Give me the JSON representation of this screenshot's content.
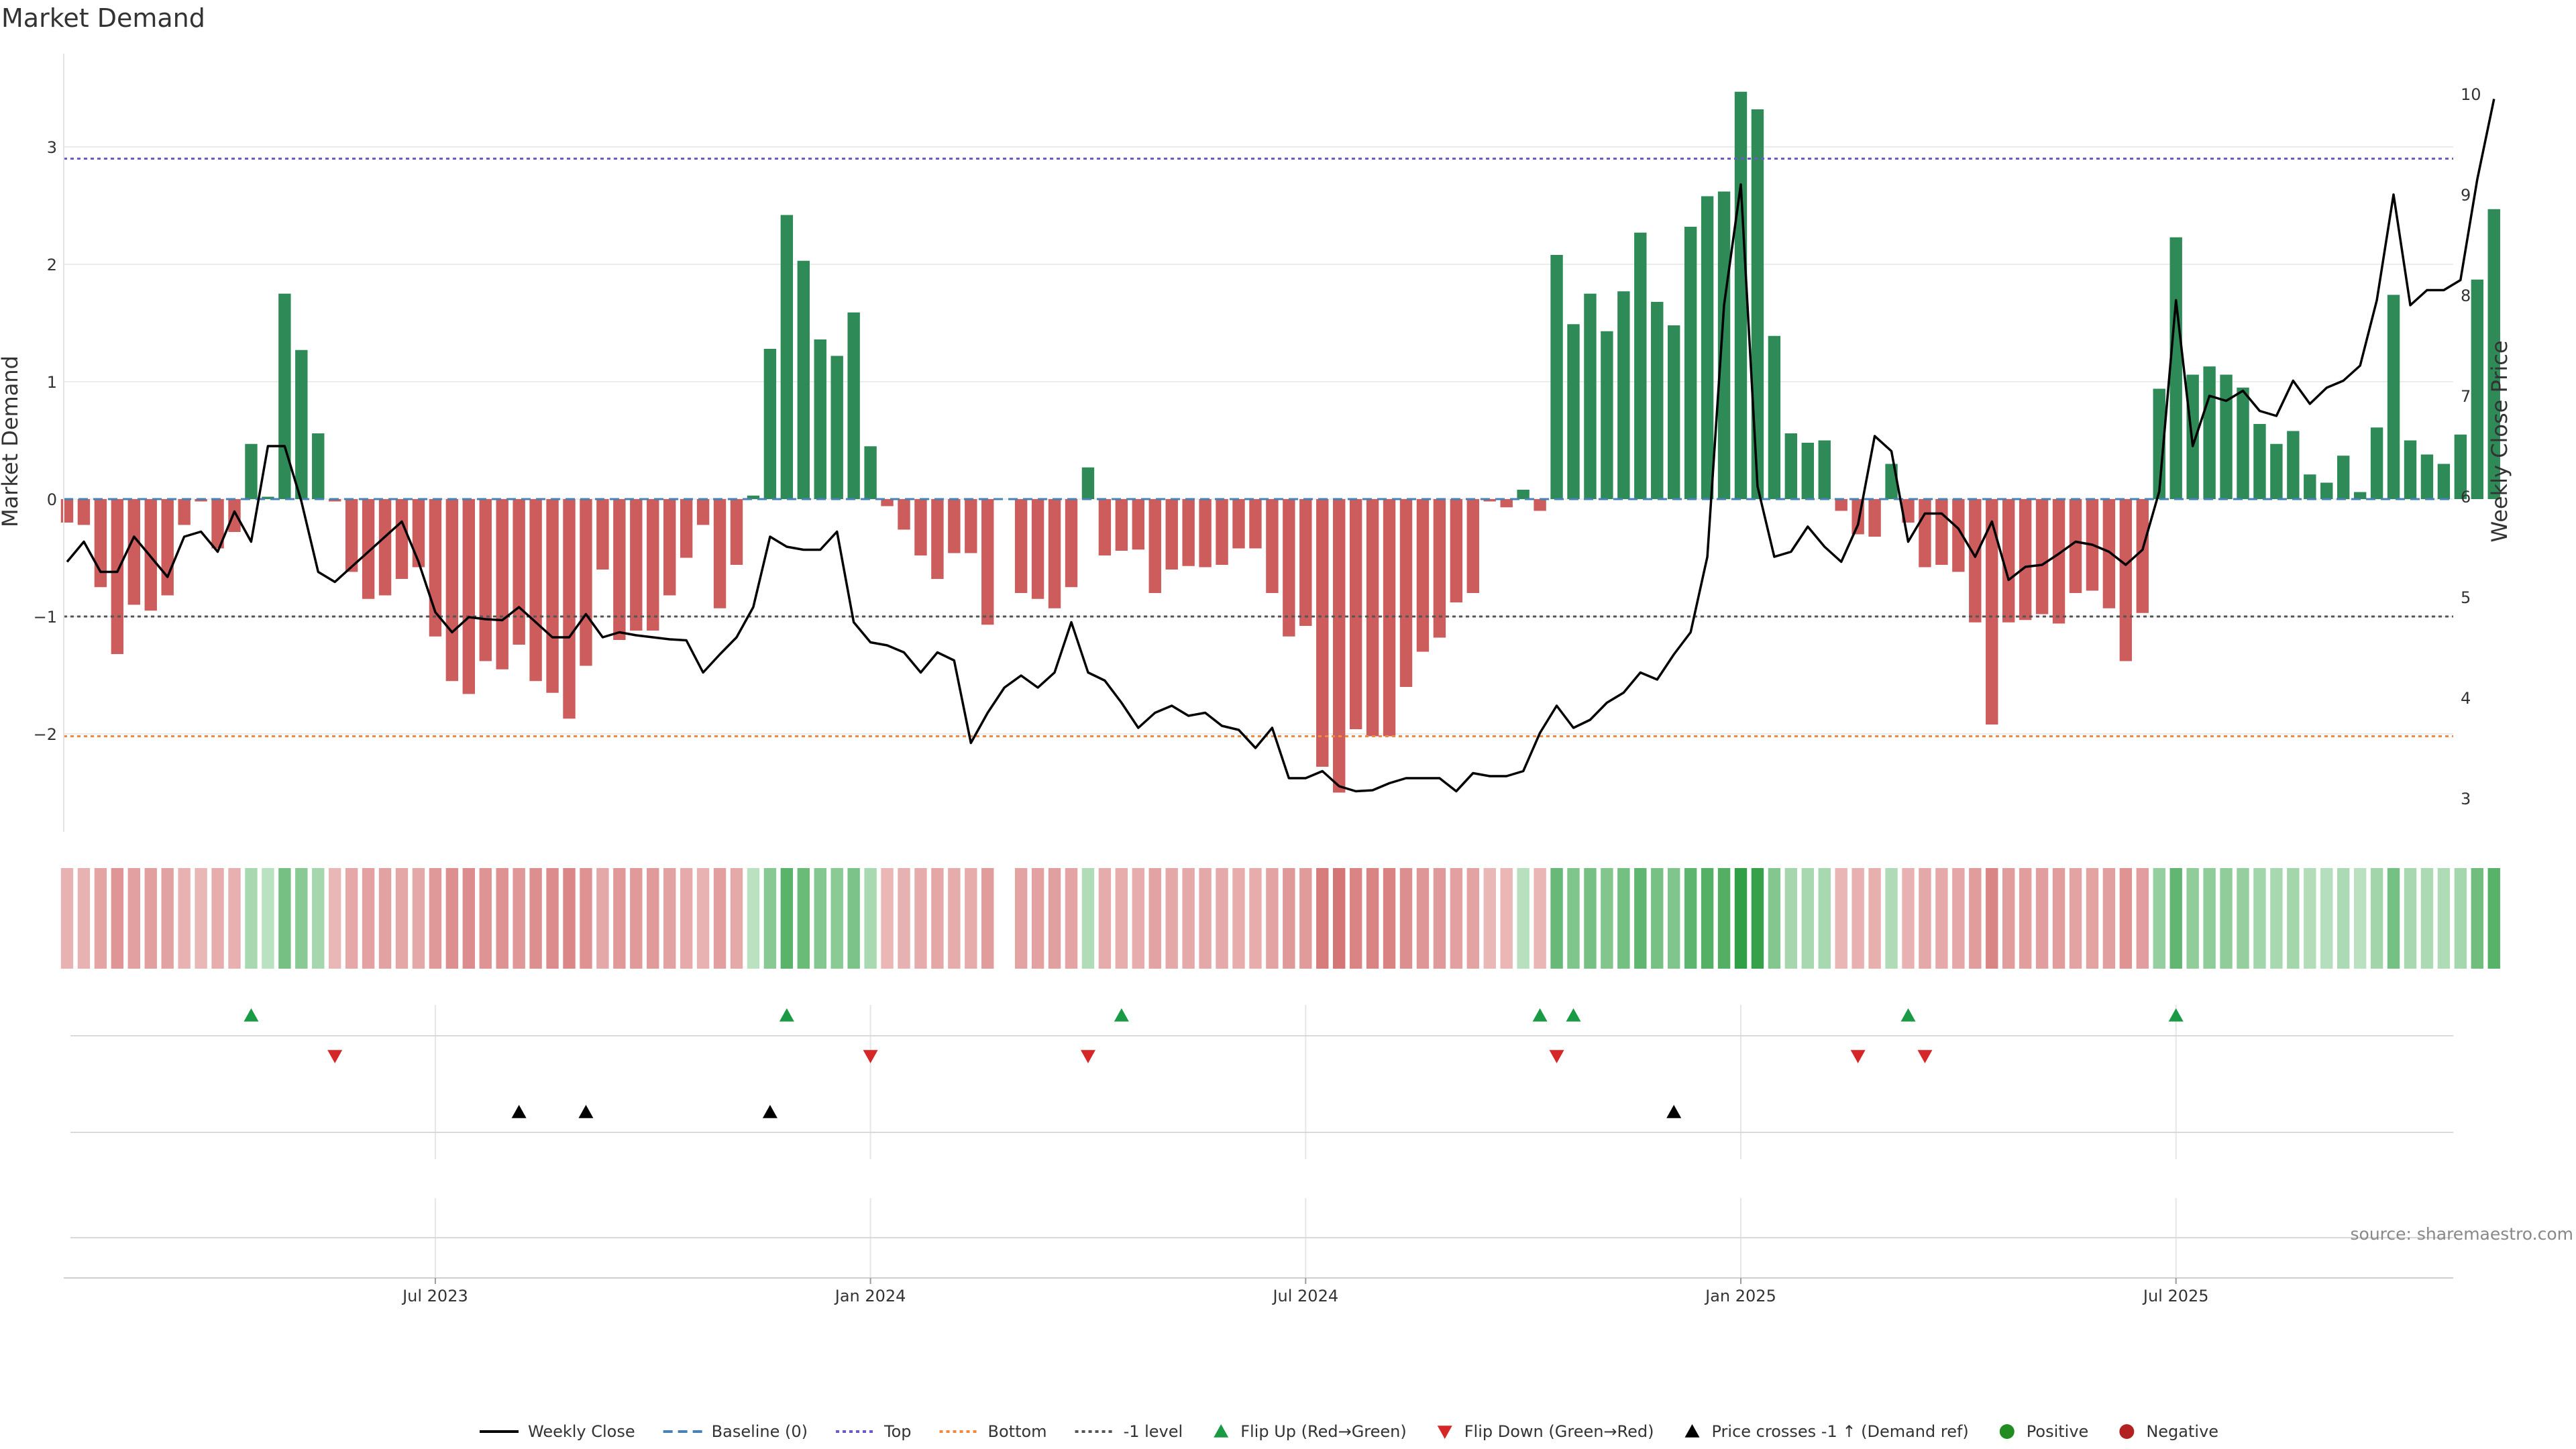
{
  "chart_data": {
    "type": "bar+line",
    "title": "Market Demand",
    "ylabel": "Market Demand",
    "y2label": "Weekly Close Price",
    "ylim": [
      -2.8,
      3.8
    ],
    "y2lim": [
      2.7,
      10.3
    ],
    "yticks": [
      -2,
      -1,
      0,
      1,
      2,
      3
    ],
    "yticks_labels": [
      "−2",
      "−1",
      "0",
      "1",
      "2",
      "3"
    ],
    "y2ticks": [
      3,
      4,
      5,
      6,
      7,
      8,
      9,
      10
    ],
    "xticks": [
      {
        "index": 22,
        "label": "Jul 2023"
      },
      {
        "index": 48,
        "label": "Jan 2024"
      },
      {
        "index": 74,
        "label": "Jul 2024"
      },
      {
        "index": 100,
        "label": "Jan 2025"
      },
      {
        "index": 126,
        "label": "Jul 2025"
      }
    ],
    "hlines": [
      {
        "name": "Top",
        "value": 2.9,
        "color": "#6a5acd",
        "style": "dotted"
      },
      {
        "name": "-1 level",
        "value": -1.0,
        "color": "#555555",
        "style": "dotted"
      },
      {
        "name": "Bottom",
        "value": -2.02,
        "color": "#f08a40",
        "style": "dotted"
      }
    ],
    "demand": [
      -0.2,
      -0.22,
      -0.75,
      -1.32,
      -0.9,
      -0.95,
      -0.82,
      -0.22,
      -0.02,
      -0.42,
      -0.28,
      0.47,
      0.02,
      1.75,
      1.27,
      0.56,
      -0.02,
      -0.62,
      -0.85,
      -0.82,
      -0.68,
      -0.58,
      -1.17,
      -1.55,
      -1.66,
      -1.38,
      -1.45,
      -1.24,
      -1.55,
      -1.65,
      -1.87,
      -1.42,
      -0.6,
      -1.2,
      -1.12,
      -1.12,
      -0.82,
      -0.5,
      -0.22,
      -0.93,
      -0.56,
      0.03,
      1.28,
      2.42,
      2.03,
      1.36,
      1.22,
      1.59,
      0.45,
      -0.06,
      -0.26,
      -0.48,
      -0.68,
      -0.46,
      -0.46,
      -1.07,
      null,
      -0.8,
      -0.85,
      -0.93,
      -0.75,
      0.27,
      -0.48,
      -0.44,
      -0.43,
      -0.8,
      -0.6,
      -0.57,
      -0.58,
      -0.56,
      -0.42,
      -0.42,
      -0.8,
      -1.17,
      -1.08,
      -2.28,
      -2.5,
      -1.96,
      -2.02,
      -2.02,
      -1.6,
      -1.3,
      -1.18,
      -0.88,
      -0.8,
      -0.02,
      -0.07,
      0.08,
      -0.1,
      2.08,
      1.49,
      1.75,
      1.43,
      1.77,
      2.27,
      1.68,
      1.48,
      2.32,
      2.58,
      2.62,
      3.47,
      3.32,
      1.39,
      0.56,
      0.48,
      0.5,
      -0.1,
      -0.3,
      -0.32,
      0.3,
      -0.2,
      -0.58,
      -0.56,
      -0.62,
      -1.05,
      -1.92,
      -1.05,
      -1.03,
      -0.98,
      -1.06,
      -0.8,
      -0.78,
      -0.93,
      -1.38,
      -0.97,
      0.94,
      2.23,
      1.06,
      1.13,
      1.06,
      0.95,
      0.64,
      0.47,
      0.58,
      0.21,
      0.14,
      0.37,
      0.06,
      0.61,
      1.74,
      0.5,
      0.38,
      0.3,
      0.55,
      1.87,
      2.47
    ],
    "close": [
      5.35,
      5.55,
      5.25,
      5.25,
      5.6,
      5.4,
      5.2,
      5.6,
      5.65,
      5.45,
      5.85,
      5.55,
      6.5,
      6.5,
      5.95,
      5.25,
      5.15,
      5.3,
      5.45,
      5.6,
      5.75,
      5.35,
      4.85,
      4.65,
      4.8,
      4.78,
      4.77,
      4.9,
      4.75,
      4.6,
      4.6,
      4.83,
      4.6,
      4.65,
      4.62,
      4.6,
      4.58,
      4.57,
      4.25,
      4.43,
      4.6,
      4.9,
      5.6,
      5.5,
      5.47,
      5.47,
      5.65,
      4.75,
      4.55,
      4.52,
      4.45,
      4.25,
      4.45,
      4.37,
      3.55,
      3.85,
      4.1,
      4.22,
      4.1,
      4.25,
      4.75,
      4.25,
      4.17,
      3.95,
      3.7,
      3.85,
      3.92,
      3.82,
      3.85,
      3.72,
      3.68,
      3.5,
      3.7,
      3.2,
      3.2,
      3.27,
      3.12,
      3.07,
      3.08,
      3.15,
      3.2,
      3.2,
      3.2,
      3.07,
      3.25,
      3.22,
      3.22,
      3.27,
      3.65,
      3.92,
      3.7,
      3.78,
      3.95,
      4.05,
      4.25,
      4.18,
      4.43,
      4.65,
      5.4,
      7.9,
      9.1,
      6.1,
      5.4,
      5.45,
      5.7,
      5.5,
      5.35,
      5.72,
      6.6,
      6.45,
      5.55,
      5.83,
      5.83,
      5.68,
      5.4,
      5.75,
      5.17,
      5.3,
      5.32,
      5.43,
      5.55,
      5.52,
      5.45,
      5.32,
      5.47,
      6.05,
      7.95,
      6.5,
      7.0,
      6.95,
      7.05,
      6.85,
      6.8,
      7.15,
      6.92,
      7.08,
      7.15,
      7.3,
      7.95,
      9.0,
      7.9,
      8.05,
      8.05,
      8.15,
      9.15,
      9.95
    ],
    "flip_up": [
      11,
      43,
      63,
      88,
      90,
      110,
      126
    ],
    "flip_down": [
      16,
      48,
      61,
      89,
      107,
      111
    ],
    "price_cross": [
      27,
      31,
      42,
      96
    ],
    "legend": [
      {
        "key": "close",
        "label": "Weekly Close"
      },
      {
        "key": "baseline",
        "label": "Baseline (0)"
      },
      {
        "key": "top",
        "label": "Top"
      },
      {
        "key": "bottom",
        "label": "Bottom"
      },
      {
        "key": "minus1",
        "label": "-1 level"
      },
      {
        "key": "flipup",
        "label": "Flip Up (Red→Green)"
      },
      {
        "key": "flipdown",
        "label": "Flip Down (Green→Red)"
      },
      {
        "key": "cross",
        "label": "Price crosses -1 ↑ (Demand ref)"
      },
      {
        "key": "positive",
        "label": "Positive"
      },
      {
        "key": "negative",
        "label": "Negative"
      }
    ],
    "source": "source: sharemaestro.com",
    "colors": {
      "positive": "#2e8b57",
      "negative": "#cd5c5c",
      "line": "#000000",
      "baseline": "#4682b4",
      "flipup": "#1a9a45",
      "flipdown": "#d62728",
      "cross": "#000000",
      "dot_positive": "#228b22",
      "dot_negative": "#b22222"
    }
  }
}
